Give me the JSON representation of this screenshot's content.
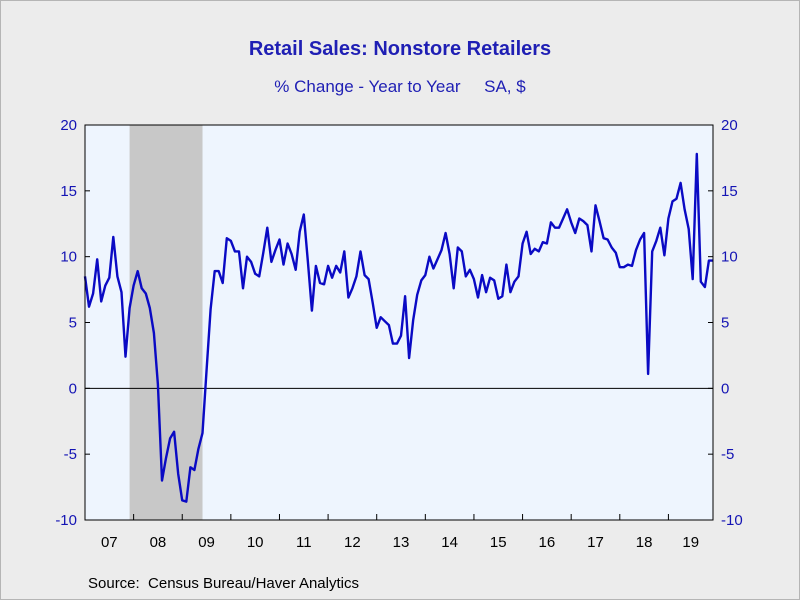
{
  "chart_data": {
    "type": "line",
    "title": "Retail Sales: Nonstore Retailers",
    "subtitle": "% Change - Year to Year     SA, $",
    "source": "Source:  Census Bureau/Haver Analytics",
    "xlabel": "",
    "ylabel": "",
    "x_range": [
      2007.0,
      2019.917
    ],
    "ylim": [
      -10,
      20
    ],
    "y_ticks": [
      -10,
      -5,
      0,
      5,
      10,
      15,
      20
    ],
    "y_tick_labels_left": [
      "-10",
      "-5",
      "0",
      "5",
      "10",
      "15",
      "20"
    ],
    "y_tick_labels_right": [
      "-10",
      "-5",
      "0",
      "5",
      "10",
      "15",
      "20"
    ],
    "x_tick_labels": [
      "07",
      "08",
      "09",
      "10",
      "11",
      "12",
      "13",
      "14",
      "15",
      "16",
      "17",
      "18",
      "19"
    ],
    "grid": false,
    "legend": "none",
    "recession_shading": [
      [
        2007.917,
        2009.417
      ]
    ],
    "colors": {
      "line": "#0a0ac4",
      "axis_text": "#1414b4",
      "plot_bg": "#eef5fe",
      "recession": "#c8c8c8",
      "title": "#1f1fb4"
    },
    "series": [
      {
        "x": [
          2007.0,
          2007.083,
          2007.167,
          2007.25,
          2007.333,
          2007.417,
          2007.5,
          2007.583,
          2007.667,
          2007.75,
          2007.833,
          2007.917,
          2008.0,
          2008.083,
          2008.167,
          2008.25,
          2008.333,
          2008.417,
          2008.5,
          2008.583,
          2008.667,
          2008.75,
          2008.833,
          2008.917,
          2009.0,
          2009.083,
          2009.167,
          2009.25,
          2009.333,
          2009.417,
          2009.5,
          2009.583,
          2009.667,
          2009.75,
          2009.833,
          2009.917,
          2010.0,
          2010.083,
          2010.167,
          2010.25,
          2010.333,
          2010.417,
          2010.5,
          2010.583,
          2010.667,
          2010.75,
          2010.833,
          2010.917,
          2011.0,
          2011.083,
          2011.167,
          2011.25,
          2011.333,
          2011.417,
          2011.5,
          2011.583,
          2011.667,
          2011.75,
          2011.833,
          2011.917,
          2012.0,
          2012.083,
          2012.167,
          2012.25,
          2012.333,
          2012.417,
          2012.5,
          2012.583,
          2012.667,
          2012.75,
          2012.833,
          2012.917,
          2013.0,
          2013.083,
          2013.167,
          2013.25,
          2013.333,
          2013.417,
          2013.5,
          2013.583,
          2013.667,
          2013.75,
          2013.833,
          2013.917,
          2014.0,
          2014.083,
          2014.167,
          2014.25,
          2014.333,
          2014.417,
          2014.5,
          2014.583,
          2014.667,
          2014.75,
          2014.833,
          2014.917,
          2015.0,
          2015.083,
          2015.167,
          2015.25,
          2015.333,
          2015.417,
          2015.5,
          2015.583,
          2015.667,
          2015.75,
          2015.833,
          2015.917,
          2016.0,
          2016.083,
          2016.167,
          2016.25,
          2016.333,
          2016.417,
          2016.5,
          2016.583,
          2016.667,
          2016.75,
          2016.833,
          2016.917,
          2017.0,
          2017.083,
          2017.167,
          2017.25,
          2017.333,
          2017.417,
          2017.5,
          2017.583,
          2017.667,
          2017.75,
          2017.833,
          2017.917,
          2018.0,
          2018.083,
          2018.167,
          2018.25,
          2018.333,
          2018.417,
          2018.5,
          2018.583,
          2018.667,
          2018.75,
          2018.833,
          2018.917,
          2019.0,
          2019.083,
          2019.167,
          2019.25,
          2019.333,
          2019.417,
          2019.5,
          2019.583,
          2019.667,
          2019.75,
          2019.833,
          2019.917
        ],
        "y": [
          8.5,
          6.2,
          7.2,
          9.8,
          6.6,
          7.8,
          8.4,
          11.5,
          8.5,
          7.3,
          2.4,
          6.1,
          7.8,
          8.9,
          7.6,
          7.2,
          6.1,
          4.2,
          0.3,
          -7.0,
          -5.3,
          -3.8,
          -3.3,
          -6.5,
          -8.5,
          -8.6,
          -6.0,
          -6.2,
          -4.6,
          -3.4,
          1.3,
          6.0,
          8.9,
          8.9,
          8.0,
          11.4,
          11.2,
          10.4,
          10.4,
          7.6,
          10.0,
          9.6,
          8.7,
          8.5,
          10.3,
          12.2,
          9.6,
          10.5,
          11.3,
          9.4,
          11.0,
          10.2,
          9.0,
          11.9,
          13.2,
          9.7,
          5.9,
          9.3,
          8.0,
          7.9,
          9.3,
          8.4,
          9.3,
          8.8,
          10.4,
          6.9,
          7.6,
          8.5,
          10.4,
          8.6,
          8.3,
          6.5,
          4.6,
          5.4,
          5.1,
          4.8,
          3.4,
          3.4,
          4.0,
          7.0,
          2.3,
          5.2,
          7.1,
          8.2,
          8.6,
          10.0,
          9.1,
          9.8,
          10.5,
          11.8,
          10.2,
          7.6,
          10.7,
          10.4,
          8.5,
          9.0,
          8.3,
          6.9,
          8.6,
          7.3,
          8.4,
          8.2,
          6.8,
          7.0,
          9.4,
          7.3,
          8.1,
          8.5,
          11.0,
          11.9,
          10.2,
          10.6,
          10.4,
          11.1,
          11.0,
          12.6,
          12.2,
          12.2,
          12.9,
          13.6,
          12.6,
          11.8,
          12.9,
          12.7,
          12.4,
          10.4,
          13.9,
          12.7,
          11.4,
          11.3,
          10.7,
          10.3,
          9.2,
          9.2,
          9.4,
          9.3,
          10.5,
          11.3,
          11.8,
          1.1,
          10.4,
          11.2,
          12.2,
          10.1,
          12.9,
          14.2,
          14.4,
          15.6,
          13.6,
          12.1,
          8.3,
          17.8,
          8.1,
          7.7,
          9.7,
          9.7
        ]
      }
    ]
  }
}
